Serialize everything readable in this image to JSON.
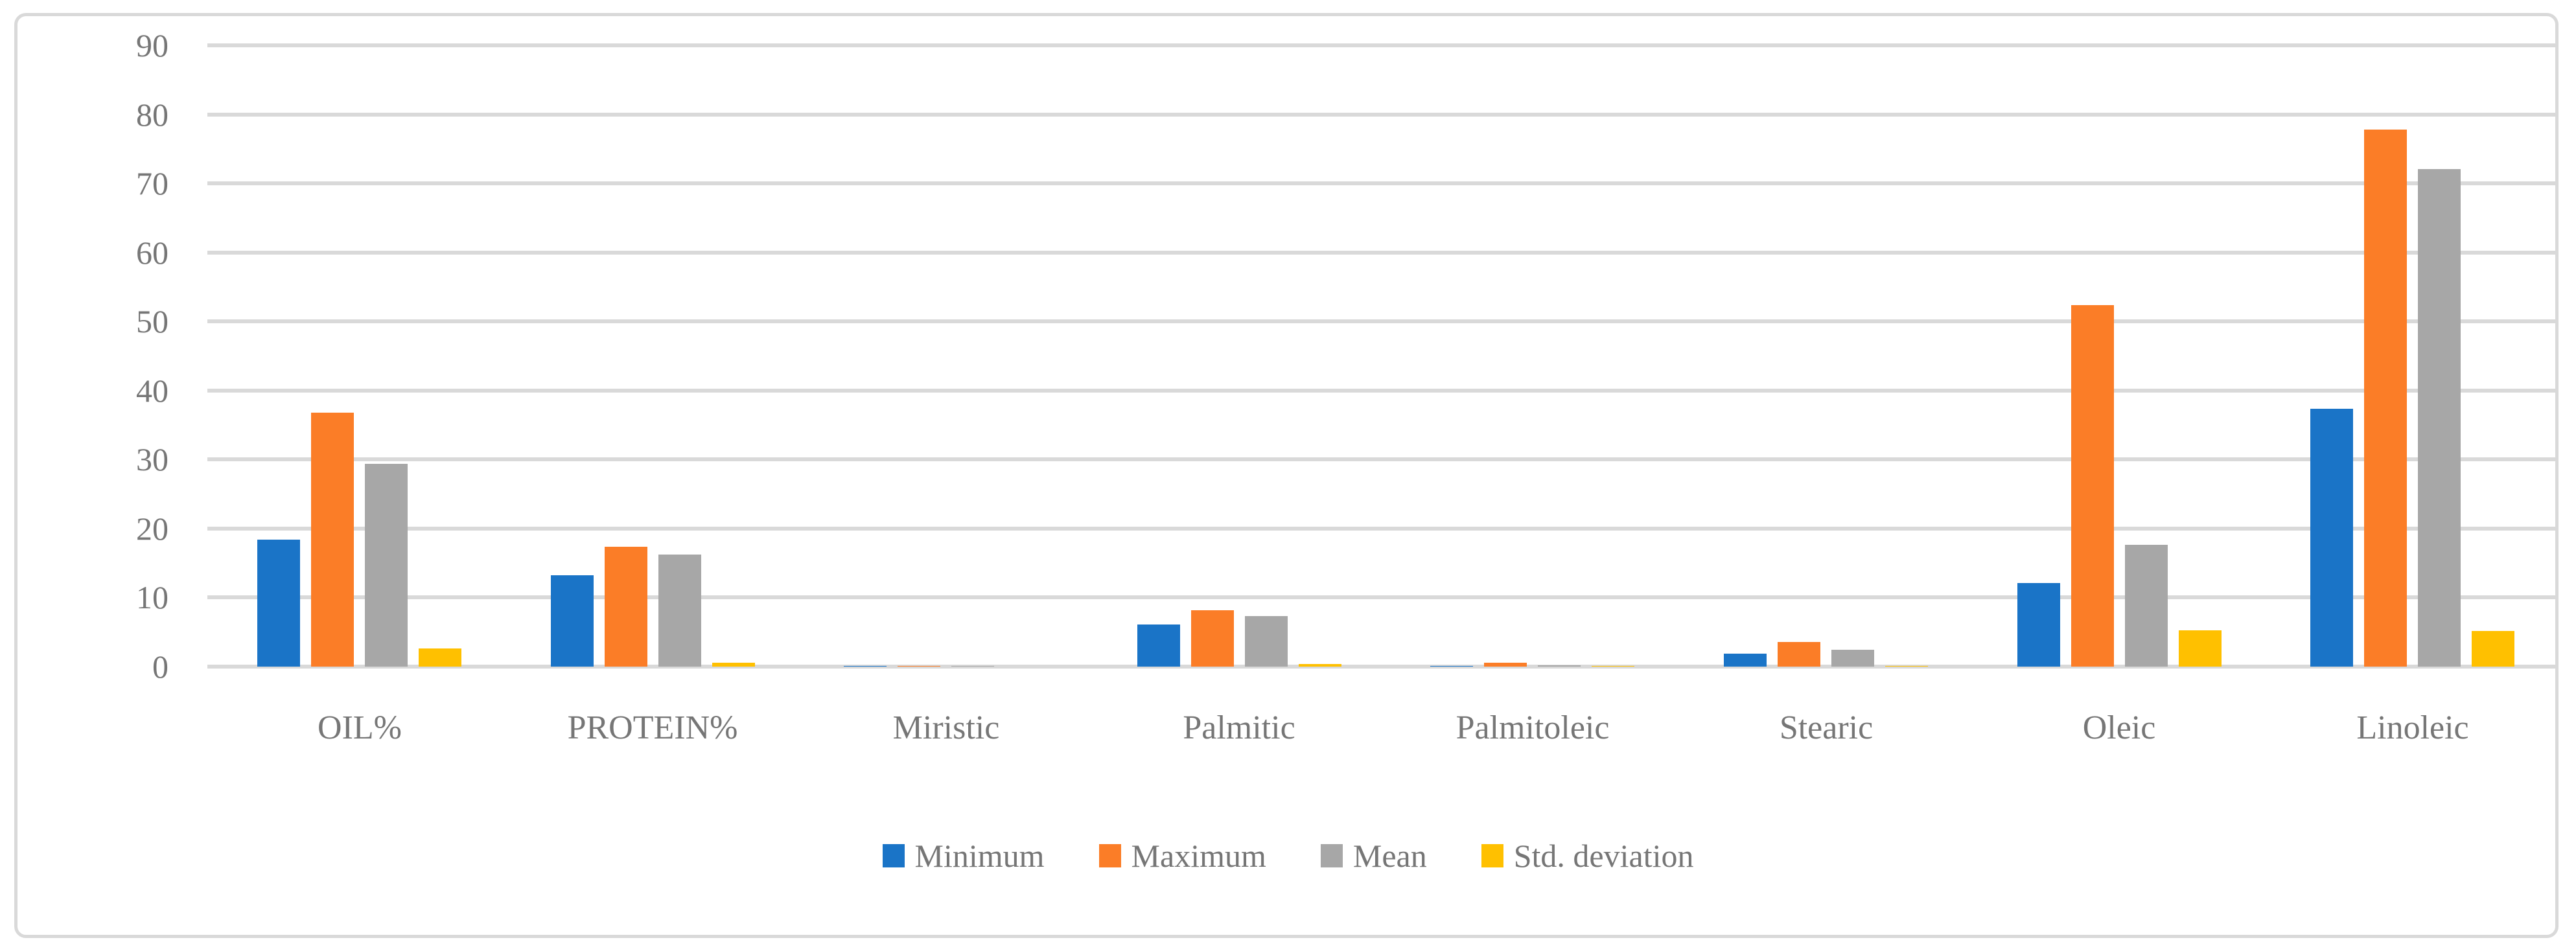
{
  "chart_data": {
    "type": "bar",
    "title": "",
    "categories": [
      "OIL%",
      "PROTEIN%",
      "Miristic",
      "Palmitic",
      "Palmitoleic",
      "Stearic",
      "Oleic",
      "Linoleic"
    ],
    "series": [
      {
        "name": "Minimum",
        "color": "#1A74C7",
        "values": [
          18.4,
          13.2,
          0.05,
          6.1,
          0.05,
          1.9,
          12.1,
          37.4
        ]
      },
      {
        "name": "Maximum",
        "color": "#FB7D27",
        "values": [
          36.8,
          17.4,
          0.08,
          8.2,
          0.6,
          3.6,
          52.4,
          77.8
        ]
      },
      {
        "name": "Mean",
        "color": "#A7A7A7",
        "values": [
          29.4,
          16.2,
          0.06,
          7.3,
          0.15,
          2.4,
          17.6,
          72.1
        ]
      },
      {
        "name": "Std. deviation",
        "color": "#FFC000",
        "values": [
          2.6,
          0.6,
          0.02,
          0.4,
          0.05,
          0.05,
          5.3,
          5.2
        ]
      }
    ],
    "ylim": [
      0,
      90
    ],
    "ytick_step": 10,
    "ytick_labels": [
      "0",
      "10",
      "20",
      "30",
      "40",
      "50",
      "60",
      "70",
      "80",
      "90"
    ],
    "xlabel": "",
    "ylabel": "",
    "grid": "horizontal gridlines on",
    "legend_position": "bottom center",
    "colors": {
      "gridline": "#D9D9D9",
      "axis_text": "#767676",
      "chart_border": "#D9D9D9",
      "background": "#FFFFFF"
    }
  }
}
